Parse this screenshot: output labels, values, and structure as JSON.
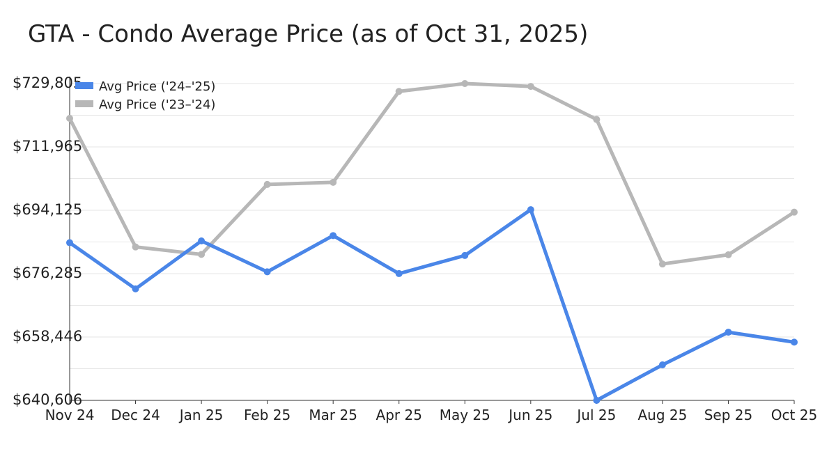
{
  "chart_data": {
    "type": "line",
    "title": "GTA - Condo Average Price (as of Oct 31, 2025)",
    "xlabel": "",
    "ylabel": "",
    "categories": [
      "Nov 24",
      "Dec 24",
      "Jan 25",
      "Feb 25",
      "Mar 25",
      "Apr 25",
      "May 25",
      "Jun 25",
      "Jul 25",
      "Aug 25",
      "Sep 25",
      "Oct 25"
    ],
    "yticks": [
      "$640,606",
      "$658,446",
      "$676,285",
      "$694,125",
      "$711,965",
      "$729,805"
    ],
    "ylim": [
      640606,
      729805
    ],
    "grid": true,
    "legend_position": "top-left",
    "series": [
      {
        "name": "Avg Price ('24–'25)",
        "color": "#4a86e8",
        "values": [
          685000,
          672000,
          685500,
          676800,
          687000,
          676300,
          681400,
          694300,
          640606,
          650600,
          659800,
          657000
        ]
      },
      {
        "name": "Avg Price ('23–'24)",
        "color": "#b7b7b7",
        "values": [
          720000,
          683800,
          681700,
          701400,
          702000,
          727600,
          729805,
          729000,
          719700,
          679000,
          681600,
          693600
        ]
      }
    ]
  }
}
